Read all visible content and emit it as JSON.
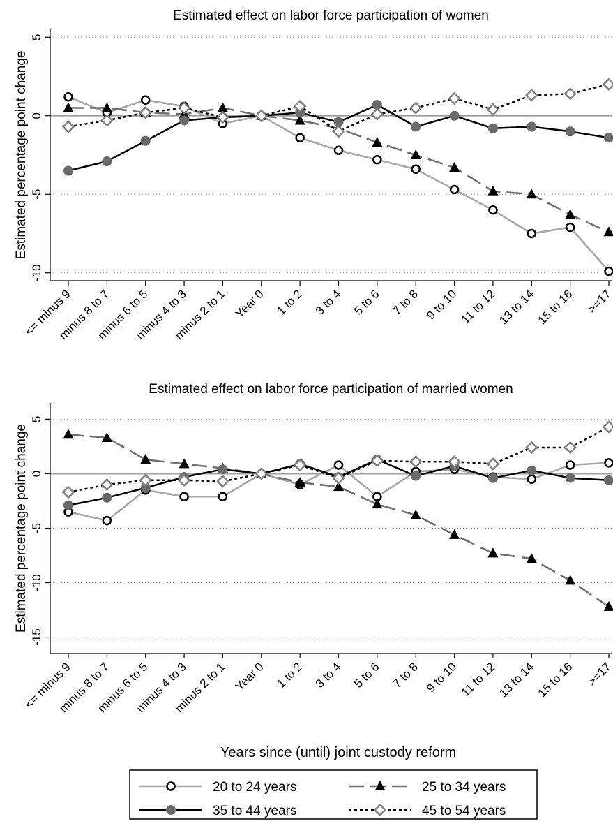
{
  "chart_data": [
    {
      "type": "line",
      "title": "Estimated effect on labor force participation of women",
      "ylabel": "Estimated percentage point change",
      "xlabel": "",
      "ylim": [
        -10.5,
        5.5
      ],
      "yticks": [
        5,
        0,
        -5,
        -10
      ],
      "grid": "horizontal dotted at y ticks, solid reference line at 0",
      "categories": [
        "<= minus 9",
        "minus 8 to 7",
        "minus 6 to 5",
        "minus 4 to 3",
        "minus 2 to 1",
        "Year 0",
        "1 to 2",
        "3 to 4",
        "5 to 6",
        "7 to 8",
        "9 to 10",
        "11 to 12",
        "13 to 14",
        "15 to 16",
        ">=17"
      ],
      "series": [
        {
          "name": "20 to 24 years",
          "values": [
            1.2,
            0.2,
            1.0,
            0.6,
            -0.5,
            0.0,
            -1.4,
            -2.2,
            -2.8,
            -3.4,
            -4.7,
            -6.0,
            -7.5,
            -7.1,
            -9.9
          ]
        },
        {
          "name": "25 to 34 years",
          "values": [
            0.5,
            0.5,
            0.2,
            0.1,
            0.5,
            0.0,
            -0.3,
            -0.8,
            -1.7,
            -2.5,
            -3.3,
            -4.8,
            -5.0,
            -6.3,
            -7.4
          ]
        },
        {
          "name": "35 to 44 years",
          "values": [
            -3.5,
            -2.9,
            -1.6,
            -0.3,
            -0.1,
            0.0,
            0.2,
            -0.4,
            0.7,
            -0.7,
            0.0,
            -0.8,
            -0.7,
            -1.0,
            -1.4
          ]
        },
        {
          "name": "45 to 54 years",
          "values": [
            -0.7,
            -0.3,
            0.2,
            0.5,
            -0.1,
            0.0,
            0.6,
            -1.0,
            0.1,
            0.5,
            1.1,
            0.4,
            1.3,
            1.4,
            2.0
          ]
        }
      ]
    },
    {
      "type": "line",
      "title": "Estimated effect on labor force participation of married women",
      "ylabel": "Estimated percentage point change",
      "xlabel": "",
      "ylim": [
        -16.5,
        6.5
      ],
      "yticks": [
        5,
        0,
        -5,
        -10,
        -15
      ],
      "grid": "horizontal dotted at y ticks, solid reference line at 0",
      "categories": [
        "<= minus 9",
        "minus 8 to 7",
        "minus 6 to 5",
        "minus 4 to 3",
        "minus 2 to 1",
        "Year 0",
        "1 to 2",
        "3 to 4",
        "5 to 6",
        "7 to 8",
        "9 to 10",
        "11 to 12",
        "13 to 14",
        "15 to 16",
        ">=17"
      ],
      "series": [
        {
          "name": "20 to 24 years",
          "values": [
            -3.5,
            -4.3,
            -1.5,
            -2.1,
            -2.1,
            0.0,
            -1.0,
            0.8,
            -2.1,
            0.2,
            0.4,
            -0.3,
            -0.5,
            0.8,
            1.0
          ]
        },
        {
          "name": "25 to 34 years",
          "values": [
            3.6,
            3.3,
            1.3,
            0.9,
            0.5,
            0.0,
            -0.8,
            -1.2,
            -2.8,
            -3.8,
            -5.6,
            -7.3,
            -7.8,
            -9.8,
            -12.2
          ]
        },
        {
          "name": "35 to 44 years",
          "values": [
            -2.9,
            -2.2,
            -1.3,
            -0.3,
            0.4,
            0.0,
            0.9,
            -0.3,
            1.3,
            -0.2,
            0.7,
            -0.4,
            0.3,
            -0.4,
            -0.6
          ]
        },
        {
          "name": "45 to 54 years",
          "values": [
            -1.7,
            -1.0,
            -0.6,
            -0.6,
            -0.7,
            0.0,
            0.8,
            -0.4,
            1.2,
            1.1,
            1.1,
            0.9,
            2.4,
            2.4,
            4.3
          ]
        }
      ]
    }
  ],
  "shared_xlabel": "Years since (until) joint custody reform",
  "legend": {
    "placement": "bottom",
    "items": [
      "20 to 24 years",
      "25 to 34 years",
      "35 to 44 years",
      "45 to 54 years"
    ]
  },
  "styles": [
    {
      "color": "#a6a6a6",
      "dash": "",
      "marker": "hollow-circle",
      "width": 2.5
    },
    {
      "color": "#6e6e6e",
      "dash": "22 9",
      "marker": "filled-triangle",
      "width": 2.5
    },
    {
      "color": "#000000",
      "dash": "",
      "marker": "filled-circle",
      "width": 2.5
    },
    {
      "color": "#000000",
      "dash": "4 4",
      "marker": "hollow-diamond",
      "width": 2.5
    }
  ]
}
